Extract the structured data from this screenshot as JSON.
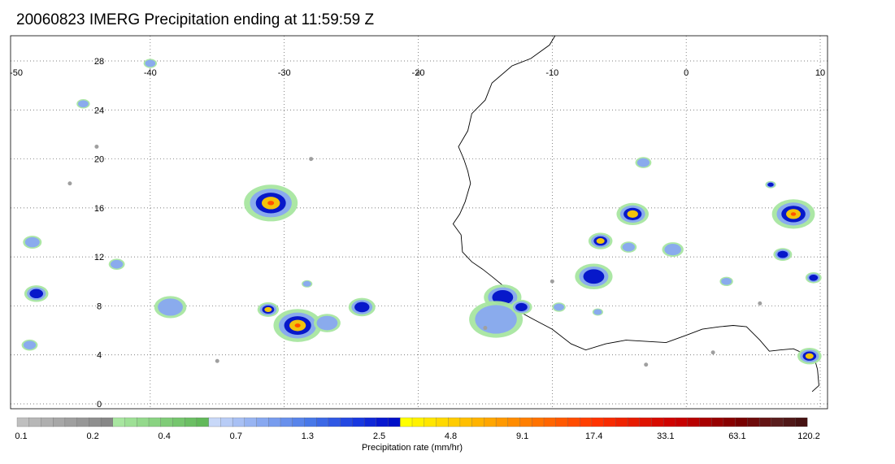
{
  "title": "20060823 IMERG Precipitation ending at 11:59:59 Z",
  "map": {
    "lon_range": [
      -50,
      10
    ],
    "lat_range": [
      -1,
      30
    ],
    "lon_ticks": [
      "-50",
      "-40",
      "-30",
      "-20",
      "-10",
      "0",
      "10"
    ],
    "lat_ticks": [
      "28",
      "24",
      "20",
      "16",
      "12",
      "8",
      "4",
      "0"
    ],
    "grid": "dotted",
    "coastline_color": "#000000",
    "background": "#ffffff"
  },
  "colorbar": {
    "label": "Precipitation rate (mm/hr)",
    "tick_labels": [
      "0.1",
      "0.2",
      "0.4",
      "0.7",
      "1.3",
      "2.5",
      "4.8",
      "9.1",
      "17.4",
      "33.1",
      "63.1",
      "120.2"
    ],
    "colors": [
      "#bfbfbf",
      "#b7b7b7",
      "#afafaf",
      "#a7a7a7",
      "#9f9f9f",
      "#979797",
      "#8f8f8f",
      "#878787",
      "#a8e6a0",
      "#9ee096",
      "#94d98c",
      "#8ad382",
      "#80cc78",
      "#76c66e",
      "#6cbf64",
      "#62b95a",
      "#c8d8f8",
      "#b8ccf6",
      "#a8c0f4",
      "#98b4f2",
      "#88a8f0",
      "#789cee",
      "#6890ec",
      "#5884ea",
      "#4878e8",
      "#3c68e6",
      "#3058e4",
      "#2448e2",
      "#1838e0",
      "#1028d8",
      "#0818d0",
      "#0010c8",
      "#ffff00",
      "#fff200",
      "#ffe600",
      "#ffd900",
      "#ffcc00",
      "#ffbf00",
      "#ffb300",
      "#ffa600",
      "#ff9900",
      "#ff8c00",
      "#ff7f00",
      "#ff7300",
      "#ff6600",
      "#ff5900",
      "#ff4c00",
      "#ff3f00",
      "#ff3300",
      "#f72b00",
      "#ef2300",
      "#e71b00",
      "#df1300",
      "#d70b00",
      "#cf0300",
      "#c70000",
      "#b80000",
      "#a80000",
      "#980000",
      "#880000",
      "#780000",
      "#6e0a0a",
      "#641414",
      "#5a1e1e",
      "#501818",
      "#461212"
    ]
  },
  "colors": {
    "light": "#a8e6a0",
    "low": "#88a8f0",
    "mid": "#0010c8",
    "high": "#ffcc00",
    "heavy": "#ff4c00",
    "trace": "#9f9f9f"
  }
}
